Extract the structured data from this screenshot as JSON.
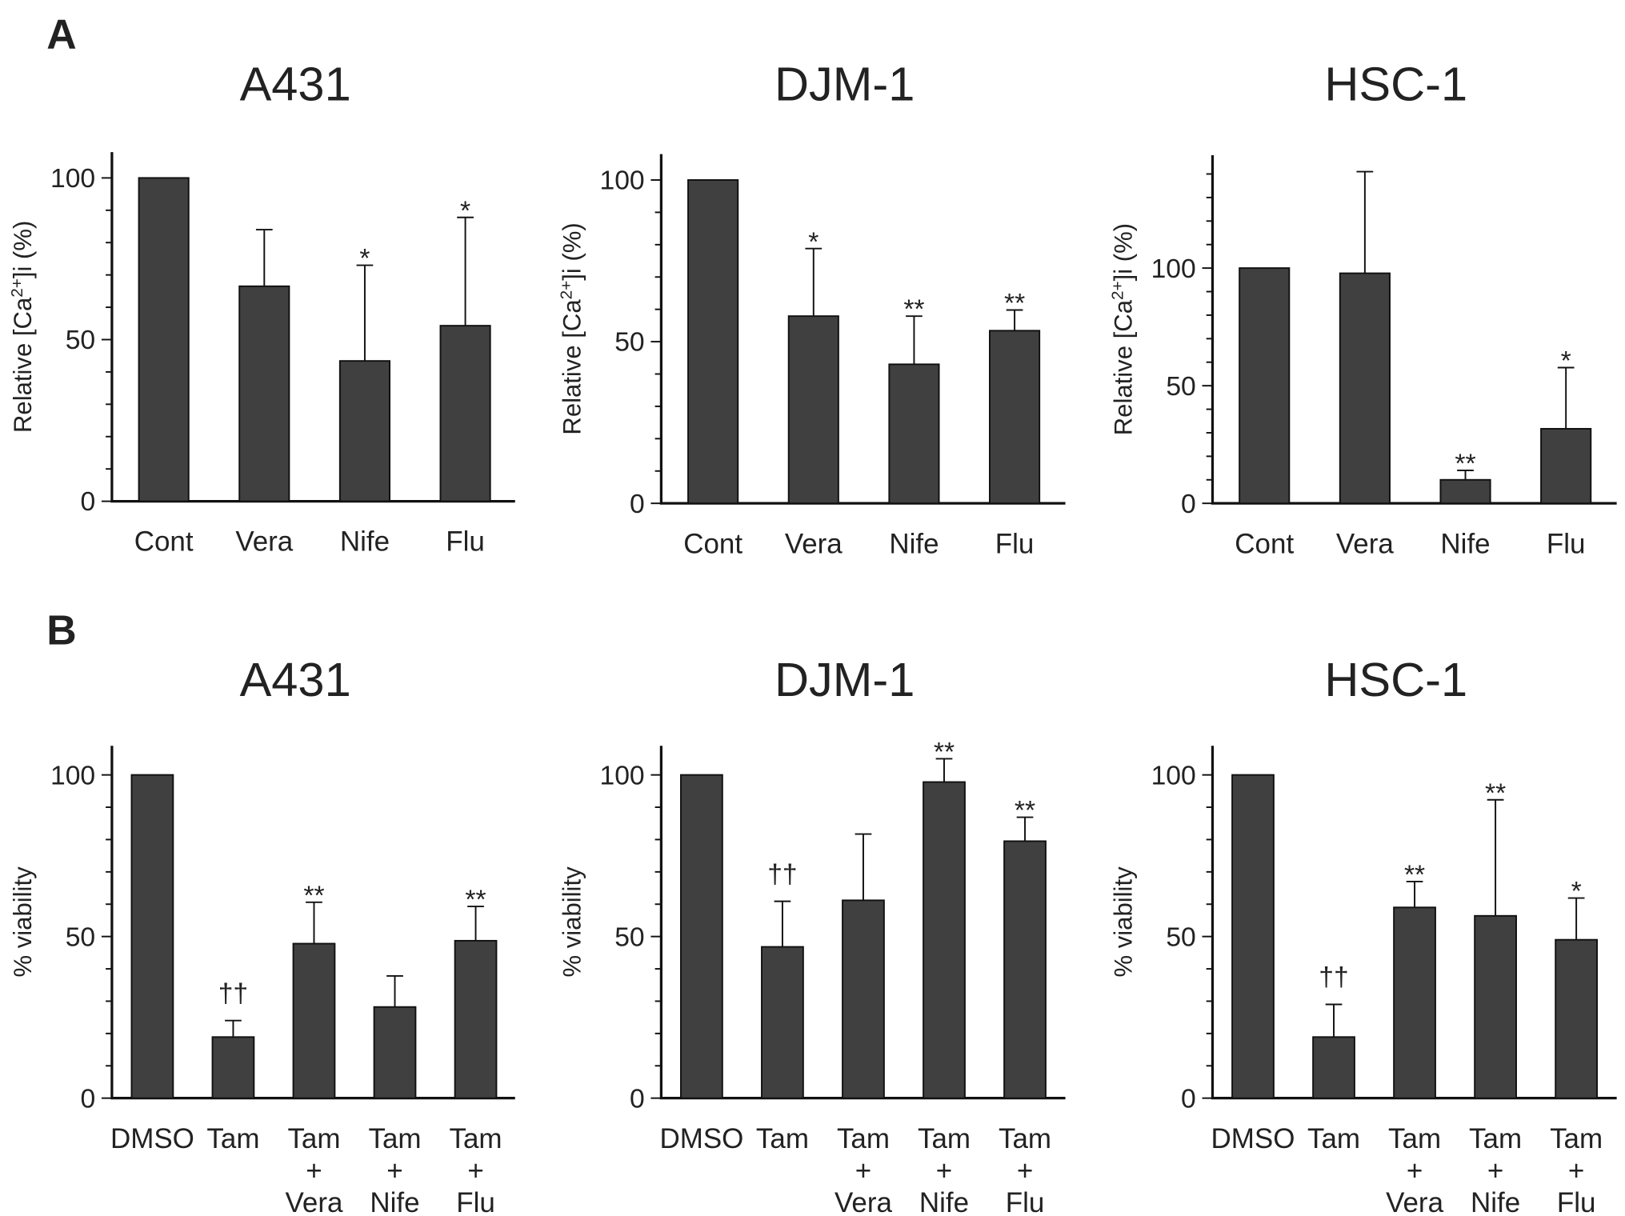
{
  "panels": [
    {
      "letter": "A"
    },
    {
      "letter": "B"
    }
  ],
  "chart_data": [
    {
      "type": "bar",
      "panel": "A",
      "title": "A431",
      "ylabel": "Relative [Ca2+]i (%)",
      "ylim": [
        0,
        108
      ],
      "yticks": [
        0,
        50,
        100
      ],
      "categories": [
        [
          "Cont"
        ],
        [
          "Vera"
        ],
        [
          "Nife"
        ],
        [
          "Flu"
        ]
      ],
      "values": [
        100,
        66.5,
        43.4,
        54.3
      ],
      "errors_upper": [
        100,
        84,
        73,
        87.8
      ],
      "annotations": [
        "",
        "",
        "*",
        "*"
      ]
    },
    {
      "type": "bar",
      "panel": "A",
      "title": "DJM-1",
      "ylabel": "Relative [Ca2+]i (%)",
      "ylim": [
        0,
        108
      ],
      "yticks": [
        0,
        50,
        100
      ],
      "categories": [
        [
          "Cont"
        ],
        [
          "Vera"
        ],
        [
          "Nife"
        ],
        [
          "Flu"
        ]
      ],
      "values": [
        100,
        57.9,
        43,
        53.4
      ],
      "errors_upper": [
        100,
        78.8,
        57.9,
        59.8
      ],
      "annotations": [
        "",
        "*",
        "**",
        "**"
      ]
    },
    {
      "type": "bar",
      "panel": "A",
      "title": "HSC-1",
      "ylabel": "Relative [Ca2+]i (%)",
      "ylim": [
        0,
        148
      ],
      "yticks": [
        0,
        50,
        100
      ],
      "categories": [
        [
          "Cont"
        ],
        [
          "Vera"
        ],
        [
          "Nife"
        ],
        [
          "Flu"
        ]
      ],
      "values": [
        100,
        97.8,
        10,
        31.7
      ],
      "errors_upper": [
        100,
        141,
        14,
        57.7
      ],
      "annotations": [
        "",
        "",
        "**",
        "*"
      ]
    },
    {
      "type": "bar",
      "panel": "B",
      "title": "A431",
      "ylabel": "% viability",
      "ylim": [
        0,
        109
      ],
      "yticks": [
        0,
        50,
        100
      ],
      "categories": [
        [
          "DMSO"
        ],
        [
          "Tam"
        ],
        [
          "Tam",
          "+",
          "Vera"
        ],
        [
          "Tam",
          "+",
          "Nife"
        ],
        [
          "Tam",
          "+",
          "Flu"
        ]
      ],
      "values": [
        100,
        18.9,
        47.8,
        28.2,
        48.7
      ],
      "errors_upper": [
        100,
        24,
        60.6,
        37.8,
        59.3
      ],
      "annotations": [
        "",
        "††",
        "**",
        "",
        "**"
      ]
    },
    {
      "type": "bar",
      "panel": "B",
      "title": "DJM-1",
      "ylabel": "% viability",
      "ylim": [
        0,
        109
      ],
      "yticks": [
        0,
        50,
        100
      ],
      "categories": [
        [
          "DMSO"
        ],
        [
          "Tam"
        ],
        [
          "Tam",
          "+",
          "Vera"
        ],
        [
          "Tam",
          "+",
          "Nife"
        ],
        [
          "Tam",
          "+",
          "Flu"
        ]
      ],
      "values": [
        100,
        46.8,
        61.2,
        97.8,
        79.5
      ],
      "errors_upper": [
        100,
        60.9,
        81.7,
        105,
        86.9
      ],
      "annotations": [
        "",
        "††",
        "",
        "**",
        "**"
      ]
    },
    {
      "type": "bar",
      "panel": "B",
      "title": "HSC-1",
      "ylabel": "% viability",
      "ylim": [
        0,
        109
      ],
      "yticks": [
        0,
        50,
        100
      ],
      "categories": [
        [
          "DMSO"
        ],
        [
          "Tam"
        ],
        [
          "Tam",
          "+",
          "Vera"
        ],
        [
          "Tam",
          "+",
          "Nife"
        ],
        [
          "Tam",
          "+",
          "Flu"
        ]
      ],
      "values": [
        100,
        18.9,
        59,
        56.4,
        49
      ],
      "errors_upper": [
        100,
        29,
        67,
        92.3,
        61.9
      ],
      "annotations": [
        "",
        "††",
        "**",
        "**",
        "*"
      ]
    }
  ]
}
